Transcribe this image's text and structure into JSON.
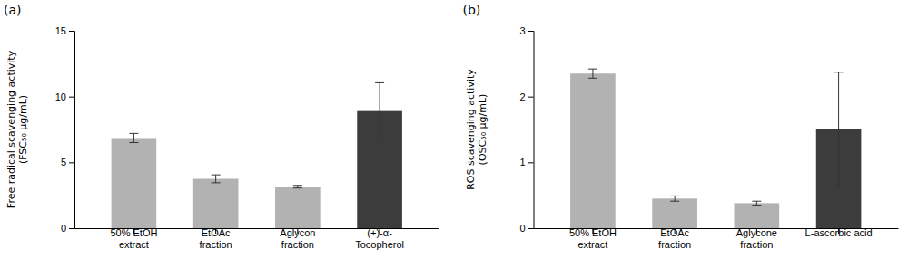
{
  "chart_data": [
    {
      "type": "bar",
      "title": "(a)",
      "categories": [
        "50% EtOH\nextract",
        "EtOAc\nfraction",
        "Aglycon\nfraction",
        "(+)-α-\nTocopherol"
      ],
      "values": [
        6.85,
        3.75,
        3.15,
        8.9
      ],
      "errors": [
        0.35,
        0.3,
        0.1,
        2.15
      ],
      "colors": [
        "#b2b2b2",
        "#b2b2b2",
        "#b2b2b2",
        "#3c3c3c"
      ],
      "ylabel": "Free radical scavenging activity\n(FSC₅₀ μg/mL)",
      "ylim": [
        0,
        15
      ],
      "yticks": [
        0,
        5,
        10,
        15
      ],
      "grid": false
    },
    {
      "type": "bar",
      "title": "(b)",
      "categories": [
        "50% EtOH\nextract",
        "EtOAc\nfraction",
        "Aglycone\nfraction",
        "L-ascorbic acid"
      ],
      "values": [
        2.35,
        0.45,
        0.38,
        1.5
      ],
      "errors": [
        0.07,
        0.04,
        0.03,
        0.87
      ],
      "colors": [
        "#b2b2b2",
        "#b2b2b2",
        "#b2b2b2",
        "#3c3c3c"
      ],
      "ylabel": "ROS scavenging activity\n(OSC₅₀ μg/mL)",
      "ylim": [
        0,
        3
      ],
      "yticks": [
        0,
        1,
        2,
        3
      ],
      "grid": false
    }
  ]
}
